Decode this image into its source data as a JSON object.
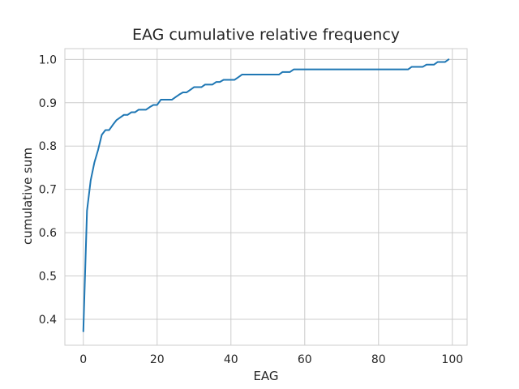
{
  "chart_data": {
    "type": "line",
    "title": "EAG cumulative relative frequency",
    "xlabel": "EAG",
    "ylabel": "cumulative sum",
    "xlim": [
      -5,
      104
    ],
    "ylim": [
      0.34,
      1.025
    ],
    "xticks": [
      0,
      20,
      40,
      60,
      80,
      100
    ],
    "yticks": [
      0.4,
      0.5,
      0.6,
      0.7,
      0.8,
      0.9,
      1.0
    ],
    "xtick_labels": [
      "0",
      "20",
      "40",
      "60",
      "80",
      "100"
    ],
    "ytick_labels": [
      "0.4",
      "0.5",
      "0.6",
      "0.7",
      "0.8",
      "0.9",
      "1.0"
    ],
    "grid": true,
    "series": [
      {
        "color": "#1f77b4",
        "x": [
          0,
          1,
          2,
          3,
          4,
          5,
          6,
          7,
          8,
          9,
          10,
          11,
          12,
          13,
          14,
          15,
          16,
          17,
          18,
          19,
          20,
          21,
          22,
          23,
          24,
          25,
          26,
          27,
          28,
          29,
          30,
          31,
          32,
          33,
          34,
          35,
          36,
          37,
          38,
          39,
          40,
          41,
          42,
          43,
          44,
          45,
          46,
          47,
          48,
          49,
          50,
          51,
          52,
          53,
          54,
          55,
          56,
          57,
          58,
          59,
          60,
          61,
          62,
          63,
          64,
          65,
          66,
          67,
          68,
          69,
          70,
          71,
          72,
          73,
          74,
          75,
          76,
          77,
          78,
          79,
          80,
          81,
          82,
          83,
          84,
          85,
          86,
          87,
          88,
          89,
          90,
          91,
          92,
          93,
          94,
          95,
          96,
          97,
          98,
          99
        ],
        "y": [
          0.372,
          0.651,
          0.721,
          0.762,
          0.791,
          0.826,
          0.837,
          0.837,
          0.849,
          0.86,
          0.866,
          0.872,
          0.872,
          0.878,
          0.878,
          0.884,
          0.884,
          0.884,
          0.89,
          0.895,
          0.895,
          0.907,
          0.907,
          0.907,
          0.907,
          0.913,
          0.919,
          0.924,
          0.924,
          0.93,
          0.936,
          0.936,
          0.936,
          0.942,
          0.942,
          0.942,
          0.948,
          0.948,
          0.953,
          0.953,
          0.953,
          0.953,
          0.959,
          0.965,
          0.965,
          0.965,
          0.965,
          0.965,
          0.965,
          0.965,
          0.965,
          0.965,
          0.965,
          0.965,
          0.971,
          0.971,
          0.971,
          0.977,
          0.977,
          0.977,
          0.977,
          0.977,
          0.977,
          0.977,
          0.977,
          0.977,
          0.977,
          0.977,
          0.977,
          0.977,
          0.977,
          0.977,
          0.977,
          0.977,
          0.977,
          0.977,
          0.977,
          0.977,
          0.977,
          0.977,
          0.977,
          0.977,
          0.977,
          0.977,
          0.977,
          0.977,
          0.977,
          0.977,
          0.977,
          0.983,
          0.983,
          0.983,
          0.983,
          0.988,
          0.988,
          0.988,
          0.994,
          0.994,
          0.994,
          1.0
        ]
      }
    ]
  }
}
